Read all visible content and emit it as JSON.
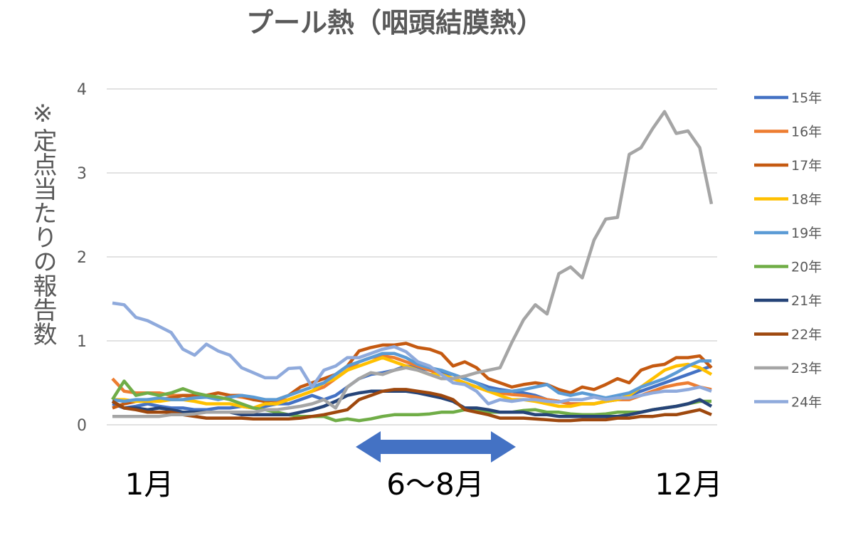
{
  "chart_data": {
    "type": "line",
    "title": "プール熱（咽頭結膜熱）",
    "y_label": "※定点当たりの報告数",
    "annotations": [
      "1月",
      "6～8月",
      "12月"
    ],
    "ylim": [
      0,
      4
    ],
    "yticks": [
      0,
      1,
      2,
      3,
      4
    ],
    "grid": true,
    "legend": "right",
    "series": [
      {
        "name": "15年",
        "color": "#4472c4",
        "values": [
          0.25,
          0.2,
          0.22,
          0.25,
          0.22,
          0.2,
          0.2,
          0.18,
          0.18,
          0.2,
          0.2,
          0.22,
          0.2,
          0.22,
          0.25,
          0.25,
          0.3,
          0.35,
          0.3,
          0.35,
          0.45,
          0.55,
          0.6,
          0.62,
          0.65,
          0.7,
          0.68,
          0.65,
          0.62,
          0.6,
          0.55,
          0.5,
          0.45,
          0.42,
          0.4,
          0.38,
          0.35,
          0.3,
          0.28,
          0.25,
          0.25,
          0.25,
          0.28,
          0.3,
          0.35,
          0.4,
          0.45,
          0.5,
          0.55,
          0.6,
          0.65,
          0.7
        ]
      },
      {
        "name": "16年",
        "color": "#ed7d31",
        "values": [
          0.55,
          0.4,
          0.38,
          0.38,
          0.38,
          0.35,
          0.35,
          0.33,
          0.35,
          0.38,
          0.35,
          0.33,
          0.3,
          0.3,
          0.28,
          0.3,
          0.35,
          0.4,
          0.45,
          0.55,
          0.65,
          0.75,
          0.8,
          0.82,
          0.8,
          0.75,
          0.7,
          0.65,
          0.6,
          0.55,
          0.5,
          0.45,
          0.4,
          0.38,
          0.36,
          0.35,
          0.33,
          0.3,
          0.28,
          0.25,
          0.25,
          0.25,
          0.28,
          0.3,
          0.3,
          0.35,
          0.4,
          0.45,
          0.48,
          0.5,
          0.45,
          0.42
        ]
      },
      {
        "name": "17年",
        "color": "#c55a11",
        "values": [
          0.2,
          0.25,
          0.28,
          0.3,
          0.3,
          0.32,
          0.35,
          0.35,
          0.35,
          0.38,
          0.35,
          0.35,
          0.3,
          0.28,
          0.3,
          0.35,
          0.45,
          0.5,
          0.55,
          0.6,
          0.7,
          0.88,
          0.92,
          0.95,
          0.95,
          0.97,
          0.92,
          0.9,
          0.85,
          0.7,
          0.75,
          0.68,
          0.55,
          0.5,
          0.45,
          0.48,
          0.5,
          0.48,
          0.42,
          0.38,
          0.45,
          0.42,
          0.48,
          0.55,
          0.5,
          0.65,
          0.7,
          0.72,
          0.8,
          0.8,
          0.82,
          0.68
        ]
      },
      {
        "name": "18年",
        "color": "#ffc000",
        "values": [
          0.3,
          0.3,
          0.28,
          0.28,
          0.28,
          0.3,
          0.3,
          0.28,
          0.25,
          0.25,
          0.25,
          0.22,
          0.2,
          0.25,
          0.25,
          0.3,
          0.35,
          0.4,
          0.5,
          0.55,
          0.65,
          0.7,
          0.75,
          0.8,
          0.75,
          0.7,
          0.65,
          0.6,
          0.6,
          0.55,
          0.5,
          0.45,
          0.4,
          0.35,
          0.3,
          0.3,
          0.28,
          0.25,
          0.22,
          0.22,
          0.25,
          0.25,
          0.28,
          0.3,
          0.35,
          0.45,
          0.55,
          0.65,
          0.7,
          0.72,
          0.68,
          0.6
        ]
      },
      {
        "name": "19年",
        "color": "#5b9bd5",
        "values": [
          0.3,
          0.28,
          0.3,
          0.3,
          0.32,
          0.3,
          0.3,
          0.32,
          0.33,
          0.3,
          0.33,
          0.35,
          0.33,
          0.3,
          0.3,
          0.35,
          0.4,
          0.45,
          0.5,
          0.6,
          0.7,
          0.75,
          0.8,
          0.85,
          0.85,
          0.8,
          0.72,
          0.68,
          0.65,
          0.6,
          0.55,
          0.5,
          0.42,
          0.4,
          0.4,
          0.42,
          0.45,
          0.48,
          0.38,
          0.35,
          0.38,
          0.35,
          0.32,
          0.35,
          0.38,
          0.45,
          0.5,
          0.55,
          0.62,
          0.7,
          0.76,
          0.76
        ]
      },
      {
        "name": "20年",
        "color": "#70ad47",
        "values": [
          0.3,
          0.52,
          0.35,
          0.38,
          0.35,
          0.38,
          0.43,
          0.38,
          0.35,
          0.33,
          0.3,
          0.25,
          0.2,
          0.18,
          0.15,
          0.12,
          0.1,
          0.1,
          0.1,
          0.05,
          0.07,
          0.05,
          0.07,
          0.1,
          0.12,
          0.12,
          0.12,
          0.13,
          0.15,
          0.15,
          0.18,
          0.18,
          0.15,
          0.15,
          0.15,
          0.17,
          0.18,
          0.15,
          0.15,
          0.13,
          0.12,
          0.12,
          0.13,
          0.15,
          0.15,
          0.15,
          0.18,
          0.2,
          0.22,
          0.25,
          0.28,
          0.28
        ]
      },
      {
        "name": "21年",
        "color": "#264478",
        "values": [
          0.28,
          0.2,
          0.2,
          0.18,
          0.2,
          0.18,
          0.15,
          0.15,
          0.15,
          0.15,
          0.15,
          0.12,
          0.12,
          0.12,
          0.12,
          0.12,
          0.15,
          0.18,
          0.22,
          0.28,
          0.35,
          0.38,
          0.4,
          0.4,
          0.4,
          0.4,
          0.38,
          0.35,
          0.32,
          0.28,
          0.2,
          0.2,
          0.18,
          0.15,
          0.15,
          0.15,
          0.12,
          0.12,
          0.1,
          0.1,
          0.1,
          0.1,
          0.1,
          0.1,
          0.12,
          0.15,
          0.18,
          0.2,
          0.22,
          0.25,
          0.3,
          0.22
        ]
      },
      {
        "name": "22年",
        "color": "#9e480e",
        "values": [
          0.28,
          0.2,
          0.18,
          0.15,
          0.15,
          0.15,
          0.12,
          0.1,
          0.08,
          0.08,
          0.08,
          0.08,
          0.07,
          0.07,
          0.07,
          0.07,
          0.08,
          0.1,
          0.12,
          0.15,
          0.18,
          0.3,
          0.35,
          0.4,
          0.42,
          0.42,
          0.4,
          0.38,
          0.35,
          0.3,
          0.18,
          0.15,
          0.12,
          0.08,
          0.08,
          0.08,
          0.07,
          0.06,
          0.05,
          0.05,
          0.06,
          0.06,
          0.06,
          0.08,
          0.08,
          0.1,
          0.1,
          0.12,
          0.12,
          0.15,
          0.18,
          0.12
        ]
      },
      {
        "name": "23年",
        "color": "#a5a5a5",
        "values": [
          0.1,
          0.1,
          0.1,
          0.1,
          0.1,
          0.12,
          0.12,
          0.13,
          0.15,
          0.15,
          0.15,
          0.15,
          0.15,
          0.18,
          0.18,
          0.2,
          0.22,
          0.25,
          0.3,
          0.2,
          0.45,
          0.55,
          0.62,
          0.6,
          0.65,
          0.68,
          0.65,
          0.6,
          0.55,
          0.55,
          0.58,
          0.62,
          0.65,
          0.68,
          0.98,
          1.25,
          1.43,
          1.32,
          1.8,
          1.88,
          1.75,
          2.2,
          2.45,
          2.47,
          3.22,
          3.3,
          3.53,
          3.73,
          3.47,
          3.5,
          3.3,
          2.63
        ]
      },
      {
        "name": "24年",
        "color": "#8faadc",
        "values": [
          1.45,
          1.43,
          1.28,
          1.24,
          1.17,
          1.1,
          0.9,
          0.83,
          0.96,
          0.88,
          0.83,
          0.68,
          0.62,
          0.56,
          0.56,
          0.67,
          0.68,
          0.45,
          0.65,
          0.7,
          0.8,
          0.8,
          0.85,
          0.9,
          0.93,
          0.87,
          0.75,
          0.7,
          0.6,
          0.5,
          0.48,
          0.4,
          0.25,
          0.3,
          0.28,
          0.3,
          0.3,
          0.28,
          0.27,
          0.3,
          0.3,
          0.33,
          0.3,
          0.32,
          0.32,
          0.35,
          0.38,
          0.4,
          0.4,
          0.42,
          0.45,
          0.4
        ]
      }
    ]
  }
}
